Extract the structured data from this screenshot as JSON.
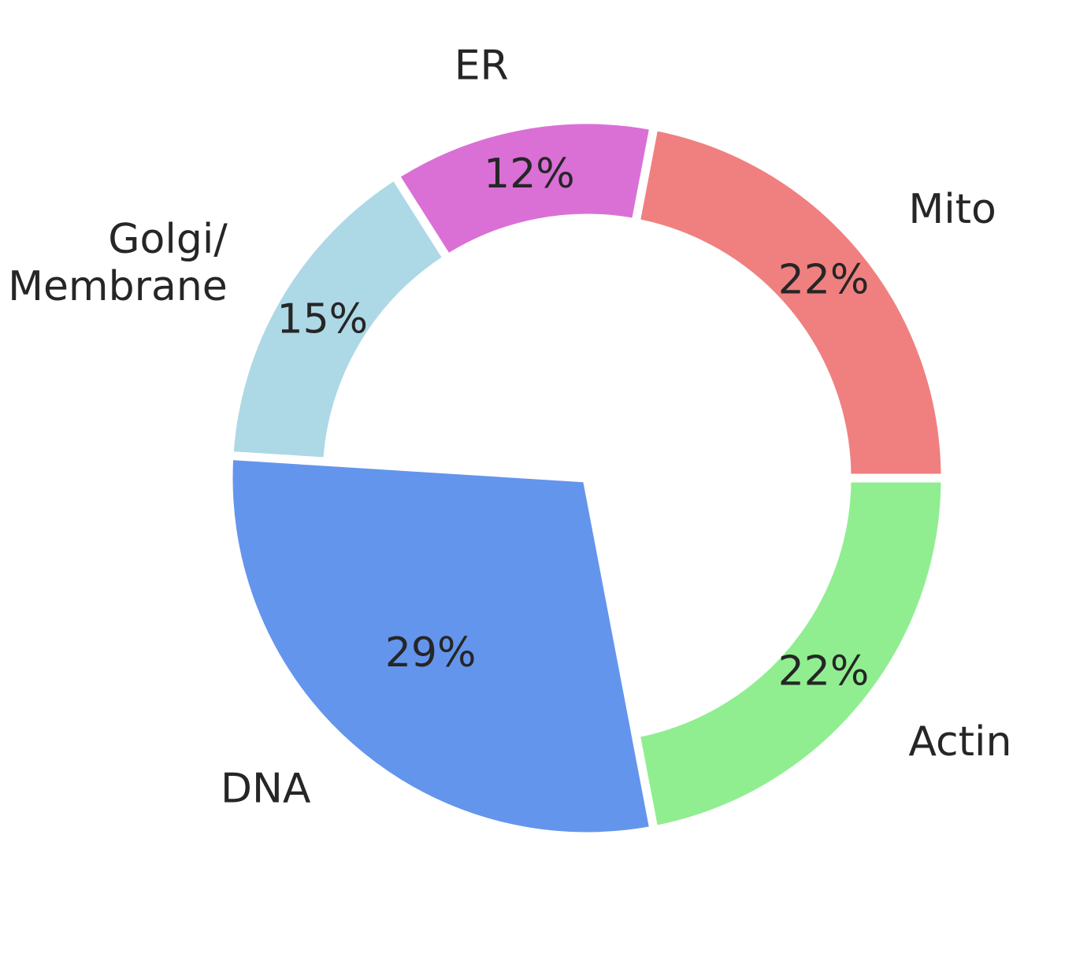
{
  "chart_data": {
    "type": "pie",
    "style": "donut-with-exploded-slice",
    "categories": [
      "Mito",
      "ER",
      "Golgi/\nMembrane",
      "DNA",
      "Actin"
    ],
    "values": [
      22,
      12,
      15,
      29,
      22
    ],
    "percent_labels": [
      "22%",
      "12%",
      "15%",
      "29%",
      "22%"
    ],
    "colors": [
      "#f08080",
      "#da70d6",
      "#add8e6",
      "#6495ed",
      "#90ee90"
    ],
    "filled_slice": "DNA",
    "start_angle_deg": 0,
    "direction": "counterclockwise",
    "legend": "none",
    "title": ""
  }
}
